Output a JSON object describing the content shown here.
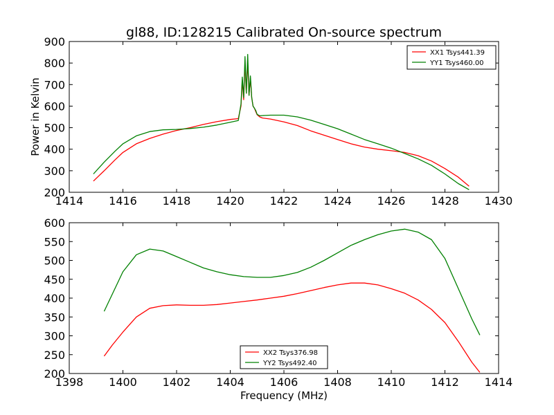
{
  "figure_title": "gl88, ID:128215 Calibrated On-source spectrum",
  "chart_data": [
    {
      "type": "line",
      "title": "gl88, ID:128215 Calibrated On-source spectrum",
      "xlabel": "",
      "ylabel": "Power in Kelvin",
      "xlim": [
        1414,
        1430
      ],
      "ylim": [
        200,
        900
      ],
      "xticks": [
        "1414",
        "1416",
        "1418",
        "1420",
        "1422",
        "1424",
        "1426",
        "1428",
        "1430"
      ],
      "yticks": [
        "200",
        "300",
        "400",
        "500",
        "600",
        "700",
        "800",
        "900"
      ],
      "legend": "top-right",
      "grid": false,
      "series": [
        {
          "name": "XX1 Tsys441.39",
          "color": "#ff0000",
          "x": [
            1414.9,
            1415.3,
            1415.7,
            1416.0,
            1416.5,
            1417.0,
            1417.5,
            1418.0,
            1418.5,
            1419.0,
            1419.5,
            1420.0,
            1420.3,
            1420.4,
            1420.45,
            1420.5,
            1420.55,
            1420.6,
            1420.65,
            1420.7,
            1420.75,
            1420.8,
            1420.85,
            1420.9,
            1420.95,
            1421.0,
            1421.1,
            1421.2,
            1421.5,
            1422.0,
            1422.5,
            1423.0,
            1423.5,
            1424.0,
            1424.5,
            1425.0,
            1425.5,
            1426.0,
            1426.5,
            1427.0,
            1427.5,
            1428.0,
            1428.5,
            1428.9
          ],
          "y": [
            252,
            300,
            350,
            385,
            425,
            450,
            470,
            487,
            500,
            515,
            528,
            538,
            542,
            600,
            720,
            630,
            800,
            660,
            810,
            650,
            730,
            640,
            600,
            590,
            575,
            560,
            550,
            545,
            540,
            527,
            510,
            485,
            465,
            445,
            425,
            410,
            400,
            393,
            385,
            370,
            345,
            310,
            270,
            228
          ]
        },
        {
          "name": "YY1 Tsys460.00",
          "color": "#008000",
          "x": [
            1414.9,
            1415.3,
            1415.7,
            1416.0,
            1416.5,
            1417.0,
            1417.5,
            1418.0,
            1418.5,
            1419.0,
            1419.5,
            1420.0,
            1420.3,
            1420.4,
            1420.45,
            1420.5,
            1420.55,
            1420.6,
            1420.65,
            1420.7,
            1420.75,
            1420.8,
            1420.85,
            1420.9,
            1420.95,
            1421.0,
            1421.1,
            1421.2,
            1421.5,
            1422.0,
            1422.5,
            1423.0,
            1423.5,
            1424.0,
            1424.5,
            1425.0,
            1425.5,
            1426.0,
            1426.5,
            1427.0,
            1427.5,
            1428.0,
            1428.5,
            1428.9
          ],
          "y": [
            285,
            340,
            390,
            425,
            462,
            482,
            490,
            492,
            496,
            502,
            512,
            525,
            533,
            610,
            735,
            640,
            830,
            660,
            840,
            650,
            740,
            640,
            600,
            590,
            580,
            562,
            555,
            556,
            558,
            558,
            550,
            535,
            515,
            495,
            470,
            445,
            425,
            405,
            380,
            355,
            325,
            285,
            240,
            212
          ]
        }
      ]
    },
    {
      "type": "line",
      "title": "",
      "xlabel": "Frequency (MHz)",
      "ylabel": "",
      "xlim": [
        1398,
        1414
      ],
      "ylim": [
        200,
        600
      ],
      "xticks": [
        "1398",
        "1400",
        "1402",
        "1404",
        "1406",
        "1408",
        "1410",
        "1412",
        "1414"
      ],
      "yticks": [
        "200",
        "250",
        "300",
        "350",
        "400",
        "450",
        "500",
        "550",
        "600"
      ],
      "legend": "bottom-center",
      "grid": false,
      "series": [
        {
          "name": "XX2 Tsys376.98",
          "color": "#ff0000",
          "x": [
            1399.3,
            1399.6,
            1400.0,
            1400.5,
            1401.0,
            1401.5,
            1402.0,
            1402.5,
            1403.0,
            1403.5,
            1404.0,
            1404.5,
            1405.0,
            1405.5,
            1406.0,
            1406.5,
            1407.0,
            1407.5,
            1408.0,
            1408.5,
            1409.0,
            1409.5,
            1410.0,
            1410.5,
            1411.0,
            1411.5,
            1412.0,
            1412.5,
            1413.0,
            1413.3
          ],
          "y": [
            246,
            275,
            310,
            350,
            373,
            380,
            382,
            381,
            381,
            383,
            387,
            391,
            395,
            400,
            405,
            412,
            420,
            428,
            435,
            440,
            440,
            435,
            425,
            413,
            395,
            370,
            335,
            285,
            230,
            203
          ]
        },
        {
          "name": "YY2 Tsys492.40",
          "color": "#008000",
          "x": [
            1399.3,
            1399.6,
            1400.0,
            1400.5,
            1401.0,
            1401.5,
            1402.0,
            1402.5,
            1403.0,
            1403.5,
            1404.0,
            1404.5,
            1405.0,
            1405.5,
            1406.0,
            1406.5,
            1407.0,
            1407.5,
            1408.0,
            1408.5,
            1409.0,
            1409.5,
            1410.0,
            1410.5,
            1411.0,
            1411.5,
            1412.0,
            1412.5,
            1413.0,
            1413.3
          ],
          "y": [
            365,
            410,
            470,
            515,
            530,
            525,
            510,
            495,
            480,
            470,
            462,
            457,
            455,
            455,
            460,
            468,
            482,
            500,
            520,
            540,
            555,
            568,
            578,
            583,
            575,
            555,
            505,
            425,
            345,
            302
          ]
        }
      ]
    }
  ]
}
